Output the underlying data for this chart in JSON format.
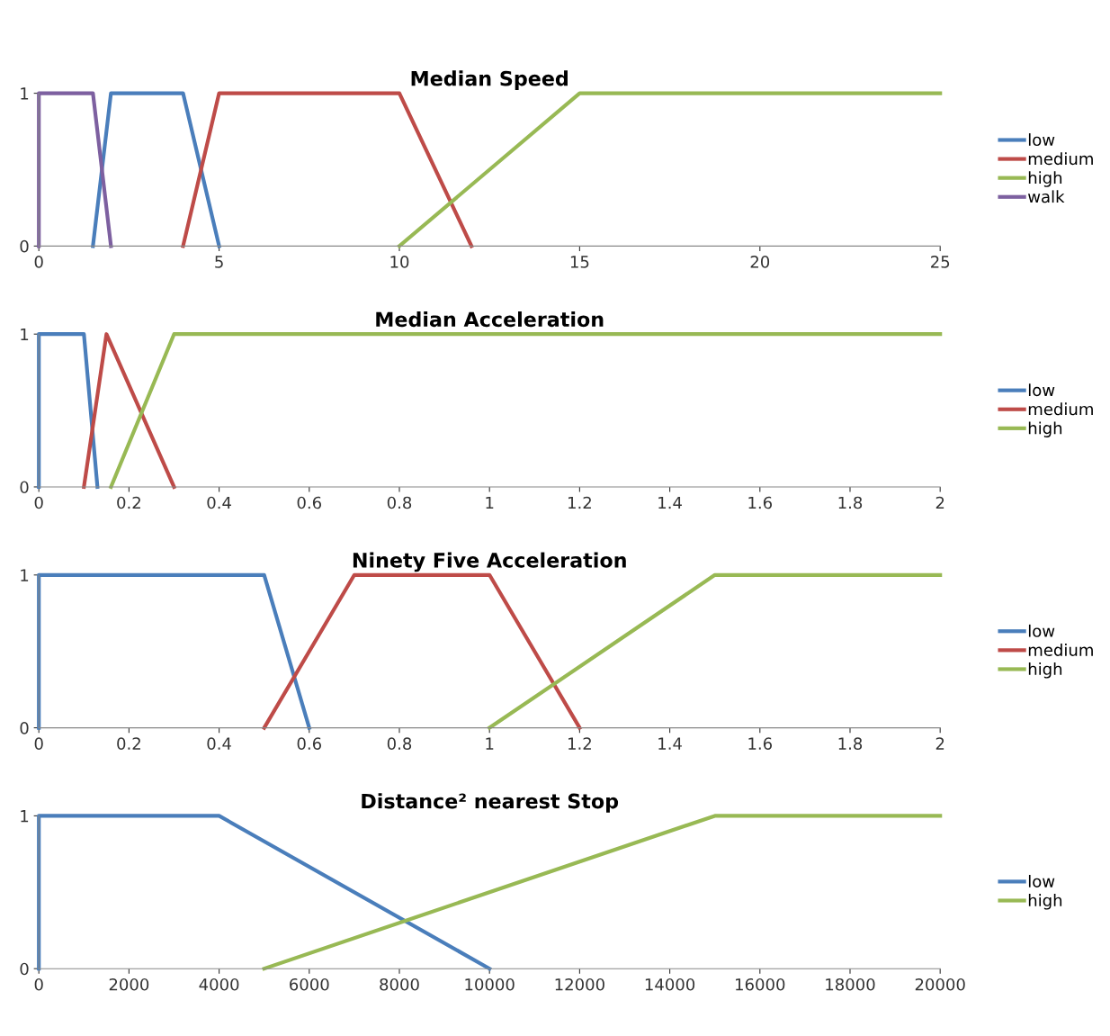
{
  "chart_data": [
    {
      "type": "line",
      "title": "Median Speed",
      "xlim": [
        0,
        25
      ],
      "xticks": [
        0,
        5,
        10,
        15,
        20,
        25
      ],
      "ylim": [
        0,
        1
      ],
      "yticks": [
        0,
        1
      ],
      "grid": false,
      "legend": "right",
      "series": [
        {
          "name": "low",
          "color": "#4a7ebb",
          "x": [
            1.5,
            2,
            4,
            5
          ],
          "values": [
            0,
            1,
            1,
            0
          ]
        },
        {
          "name": "medium",
          "color": "#be4b48",
          "x": [
            4,
            5,
            10,
            12
          ],
          "values": [
            0,
            1,
            1,
            0
          ]
        },
        {
          "name": "high",
          "color": "#98b954",
          "x": [
            10,
            15,
            25
          ],
          "values": [
            0,
            1,
            1
          ]
        },
        {
          "name": "walk",
          "color": "#7d60a0",
          "x": [
            0,
            0,
            1.5,
            2
          ],
          "values": [
            0,
            1,
            1,
            0
          ]
        }
      ]
    },
    {
      "type": "line",
      "title": "Median Acceleration",
      "xlim": [
        0,
        2
      ],
      "xticks": [
        0,
        0.2,
        0.4,
        0.6,
        0.8,
        1,
        1.2,
        1.4,
        1.6,
        1.8,
        2
      ],
      "ylim": [
        0,
        1
      ],
      "yticks": [
        0,
        1
      ],
      "grid": false,
      "legend": "right",
      "series": [
        {
          "name": "low",
          "color": "#4a7ebb",
          "x": [
            0,
            0,
            0.1,
            0.13
          ],
          "values": [
            0,
            1,
            1,
            0
          ]
        },
        {
          "name": "medium",
          "color": "#be4b48",
          "x": [
            0.1,
            0.15,
            0.3
          ],
          "values": [
            0,
            1,
            0
          ]
        },
        {
          "name": "high",
          "color": "#98b954",
          "x": [
            0.16,
            0.3,
            2
          ],
          "values": [
            0,
            1,
            1
          ]
        }
      ]
    },
    {
      "type": "line",
      "title": "Ninety Five Acceleration",
      "xlim": [
        0,
        2
      ],
      "xticks": [
        0,
        0.2,
        0.4,
        0.6,
        0.8,
        1,
        1.2,
        1.4,
        1.6,
        1.8,
        2
      ],
      "ylim": [
        0,
        1
      ],
      "yticks": [
        0,
        1
      ],
      "grid": false,
      "legend": "right",
      "series": [
        {
          "name": "low",
          "color": "#4a7ebb",
          "x": [
            0,
            0,
            0.5,
            0.6
          ],
          "values": [
            0,
            1,
            1,
            0
          ]
        },
        {
          "name": "medium",
          "color": "#be4b48",
          "x": [
            0.5,
            0.7,
            1,
            1.2
          ],
          "values": [
            0,
            1,
            1,
            0
          ]
        },
        {
          "name": "high",
          "color": "#98b954",
          "x": [
            1,
            1.5,
            2
          ],
          "values": [
            0,
            1,
            1
          ]
        }
      ]
    },
    {
      "type": "line",
      "title": "Distance² nearest Stop",
      "xlim": [
        0,
        20000
      ],
      "xticks": [
        0,
        2000,
        4000,
        6000,
        8000,
        10000,
        12000,
        14000,
        16000,
        18000,
        20000
      ],
      "ylim": [
        0,
        1
      ],
      "yticks": [
        0,
        1
      ],
      "grid": false,
      "legend": "right",
      "series": [
        {
          "name": "low",
          "color": "#4a7ebb",
          "x": [
            0,
            0,
            4000,
            10000
          ],
          "values": [
            0,
            1,
            1,
            0
          ]
        },
        {
          "name": "high",
          "color": "#98b954",
          "x": [
            5000,
            15000,
            20000
          ],
          "values": [
            0,
            1,
            1
          ]
        }
      ]
    }
  ]
}
